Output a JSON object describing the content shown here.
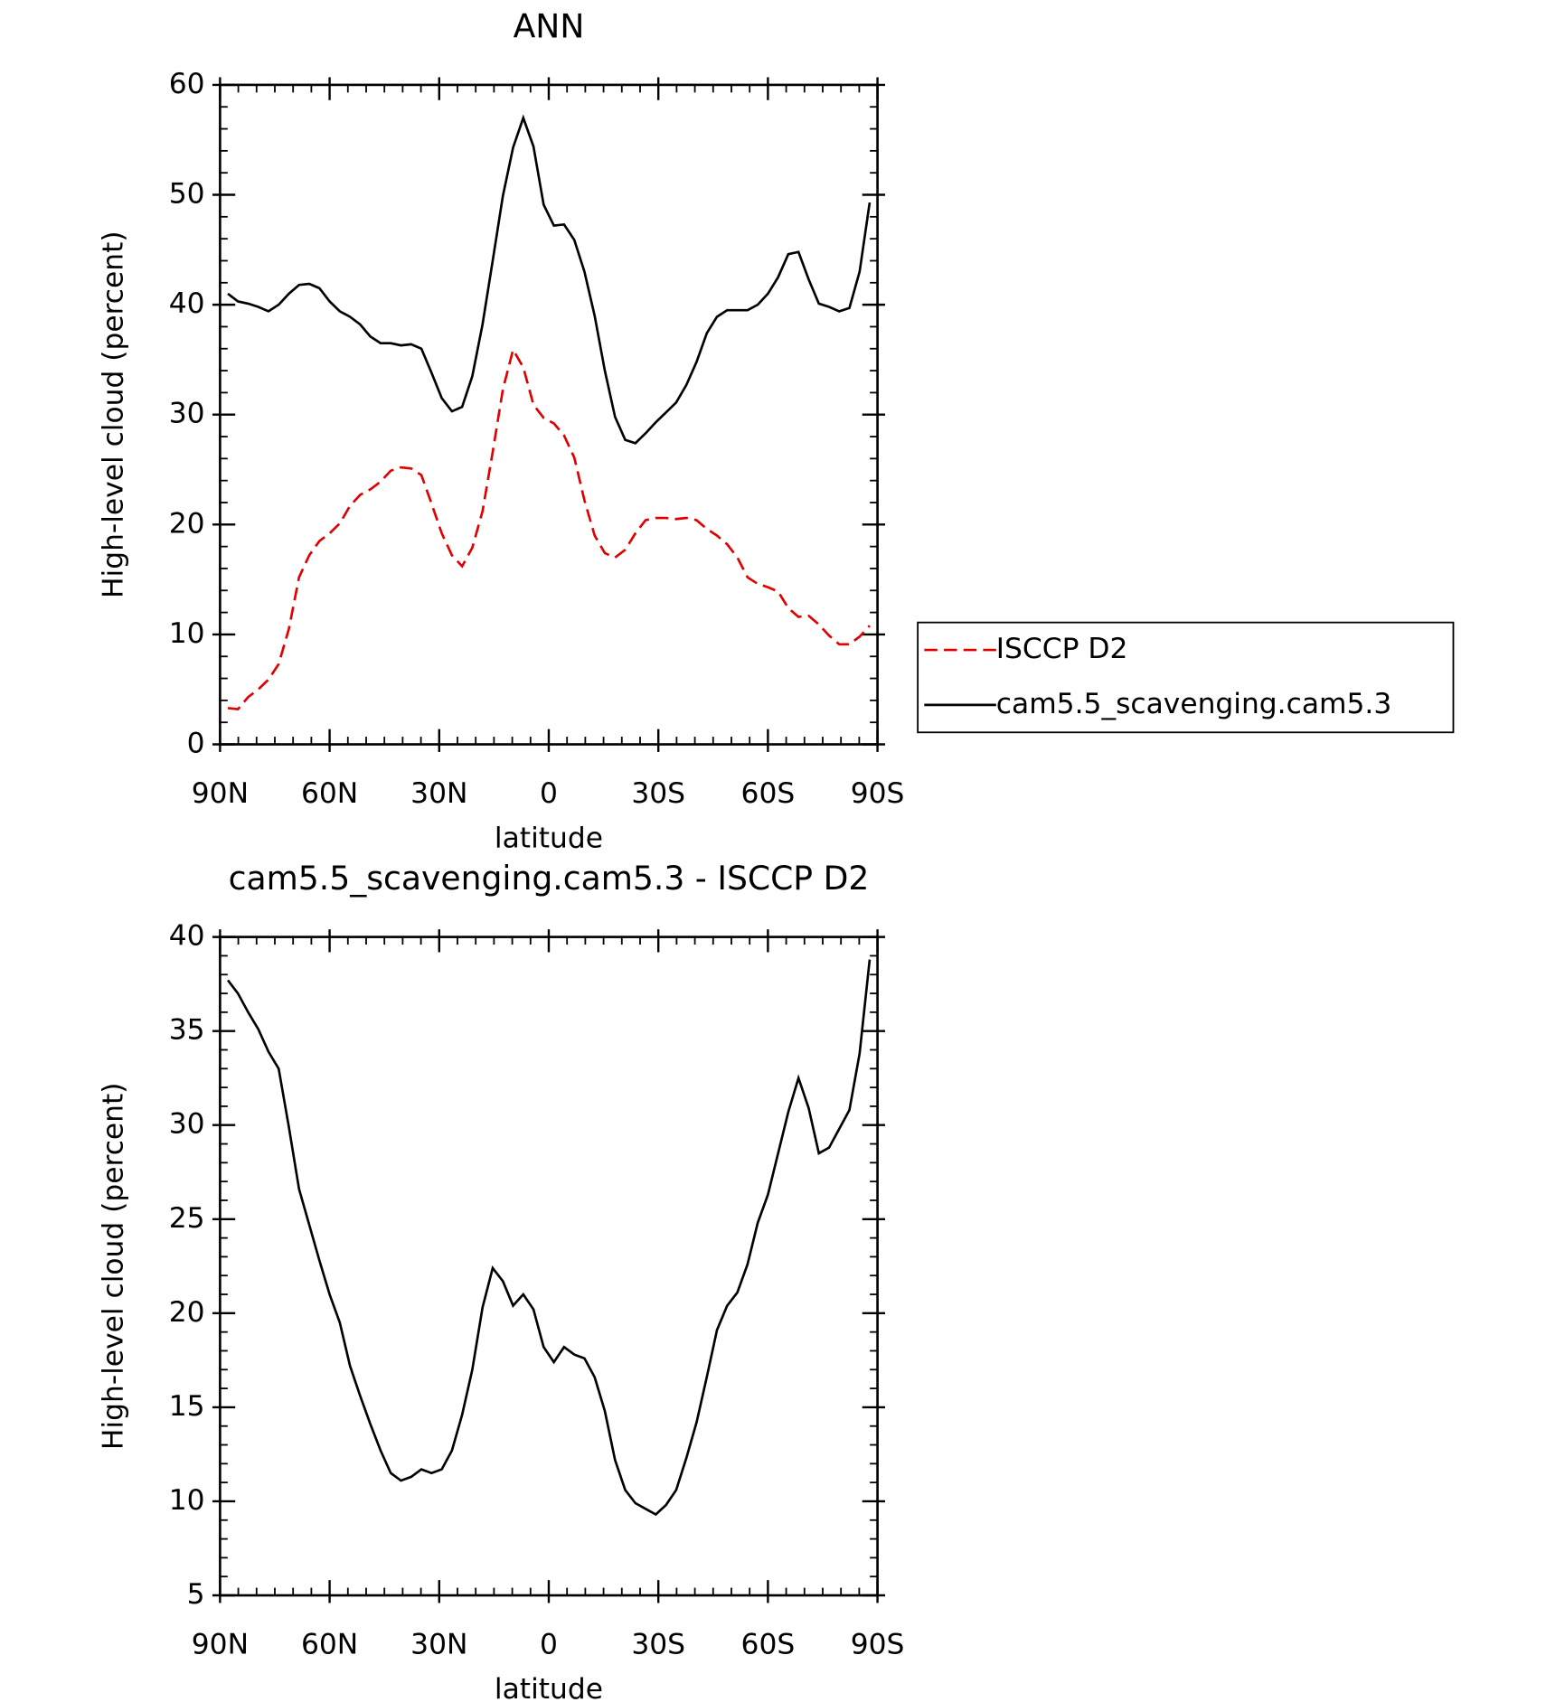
{
  "chart_data": [
    {
      "type": "line",
      "title": "ANN",
      "xlabel": "latitude",
      "ylabel": "High-level cloud (percent)",
      "x": [
        87.86,
        85.1,
        82.31,
        79.53,
        76.74,
        73.95,
        71.16,
        68.37,
        65.58,
        62.79,
        60.0,
        57.21,
        54.42,
        51.63,
        48.84,
        46.05,
        43.26,
        40.47,
        37.67,
        34.88,
        32.09,
        29.3,
        26.51,
        23.72,
        20.93,
        18.14,
        15.35,
        12.56,
        9.77,
        6.98,
        4.19,
        1.4,
        -1.4,
        -4.19,
        -6.98,
        -9.77,
        -12.56,
        -15.35,
        -18.14,
        -20.93,
        -23.72,
        -26.51,
        -29.3,
        -32.09,
        -34.88,
        -37.67,
        -40.47,
        -43.26,
        -46.05,
        -48.84,
        -51.63,
        -54.42,
        -57.21,
        -60.0,
        -62.79,
        -65.58,
        -68.37,
        -71.16,
        -73.95,
        -76.74,
        -79.53,
        -82.31,
        -85.1,
        -87.86
      ],
      "series": [
        {
          "name": "ISCCP D2",
          "color": "#e00000",
          "dash": true,
          "values": [
            3.3,
            3.2,
            4.3,
            5.0,
            5.9,
            7.3,
            10.5,
            15.2,
            17.2,
            18.5,
            19.2,
            20.1,
            21.7,
            22.7,
            23.2,
            23.9,
            24.9,
            25.2,
            25.1,
            24.5,
            21.9,
            19.2,
            17.2,
            16.2,
            17.9,
            21.2,
            26.6,
            32.3,
            35.9,
            34.3,
            30.9,
            29.7,
            29.2,
            28.1,
            26.1,
            22.2,
            19.0,
            17.4,
            17.0,
            17.7,
            19.2,
            20.4,
            20.6,
            20.6,
            20.5,
            20.6,
            20.4,
            19.6,
            19.0,
            18.2,
            17.0,
            15.2,
            14.6,
            14.3,
            13.9,
            12.4,
            11.6,
            11.7,
            10.9,
            9.9,
            9.1,
            9.1,
            9.8,
            10.8
          ]
        },
        {
          "name": "cam5.5_scavenging.cam5.3",
          "color": "#000000",
          "dash": false,
          "values": [
            41.0,
            40.3,
            40.1,
            39.8,
            39.4,
            40.0,
            41.0,
            41.8,
            41.9,
            41.5,
            40.3,
            39.4,
            38.9,
            38.2,
            37.1,
            36.5,
            36.5,
            36.3,
            36.4,
            36.0,
            33.8,
            31.5,
            30.3,
            30.7,
            33.5,
            38.2,
            44.0,
            49.9,
            54.3,
            57.0,
            54.4,
            49.1,
            47.2,
            47.3,
            45.9,
            43.0,
            39.0,
            34.0,
            29.8,
            27.7,
            27.4,
            28.3,
            29.3,
            30.2,
            31.1,
            32.7,
            34.8,
            37.4,
            38.9,
            39.5,
            39.5,
            39.5,
            40.0,
            41.0,
            42.5,
            44.6,
            44.8,
            42.3,
            40.1,
            39.8,
            39.4,
            39.7,
            43.0,
            49.3
          ]
        }
      ],
      "xlim": [
        90,
        -90
      ],
      "xticks": [
        {
          "value": 90,
          "label": "90N"
        },
        {
          "value": 60,
          "label": "60N"
        },
        {
          "value": 30,
          "label": "30N"
        },
        0,
        {
          "value": -30,
          "label": "30S"
        },
        {
          "value": -60,
          "label": "60S"
        },
        {
          "value": -90,
          "label": "90S"
        }
      ],
      "ylim": [
        0,
        60
      ],
      "yticks": [
        0,
        10,
        20,
        30,
        40,
        50,
        60
      ],
      "legend": "right"
    },
    {
      "type": "line",
      "title": "cam5.5_scavenging.cam5.3 - ISCCP D2",
      "xlabel": "latitude",
      "ylabel": "High-level cloud (percent)",
      "x": [
        87.86,
        85.1,
        82.31,
        79.53,
        76.74,
        73.95,
        71.16,
        68.37,
        65.58,
        62.79,
        60.0,
        57.21,
        54.42,
        51.63,
        48.84,
        46.05,
        43.26,
        40.47,
        37.67,
        34.88,
        32.09,
        29.3,
        26.51,
        23.72,
        20.93,
        18.14,
        15.35,
        12.56,
        9.77,
        6.98,
        4.19,
        1.4,
        -1.4,
        -4.19,
        -6.98,
        -9.77,
        -12.56,
        -15.35,
        -18.14,
        -20.93,
        -23.72,
        -26.51,
        -29.3,
        -32.09,
        -34.88,
        -37.67,
        -40.47,
        -43.26,
        -46.05,
        -48.84,
        -51.63,
        -54.42,
        -57.21,
        -60.0,
        -62.79,
        -65.58,
        -68.37,
        -71.16,
        -73.95,
        -76.74,
        -79.53,
        -82.31,
        -85.1,
        -87.86
      ],
      "series": [
        {
          "color": "#000000",
          "dash": false,
          "values": [
            37.7,
            37.0,
            36.0,
            35.1,
            33.9,
            33.0,
            29.9,
            26.6,
            24.7,
            22.8,
            21.0,
            19.5,
            17.2,
            15.6,
            14.1,
            12.7,
            11.5,
            11.1,
            11.3,
            11.7,
            11.5,
            11.7,
            12.7,
            14.6,
            17.0,
            20.3,
            22.4,
            21.7,
            20.4,
            21.0,
            20.2,
            18.2,
            17.4,
            18.2,
            17.8,
            17.6,
            16.6,
            14.8,
            12.2,
            10.6,
            9.9,
            9.6,
            9.3,
            9.8,
            10.6,
            12.3,
            14.2,
            16.6,
            19.1,
            20.4,
            21.1,
            22.6,
            24.8,
            26.3,
            28.5,
            30.7,
            32.5,
            30.9,
            28.5,
            28.8,
            29.8,
            30.8,
            33.8,
            38.8
          ]
        }
      ],
      "xlim": [
        90,
        -90
      ],
      "xticks": [
        {
          "value": 90,
          "label": "90N"
        },
        {
          "value": 60,
          "label": "60N"
        },
        {
          "value": 30,
          "label": "30N"
        },
        0,
        {
          "value": -30,
          "label": "30S"
        },
        {
          "value": -60,
          "label": "60S"
        },
        {
          "value": -90,
          "label": "90S"
        }
      ],
      "ylim": [
        5,
        40
      ],
      "yticks": [
        5,
        10,
        15,
        20,
        25,
        30,
        35,
        40
      ]
    }
  ]
}
